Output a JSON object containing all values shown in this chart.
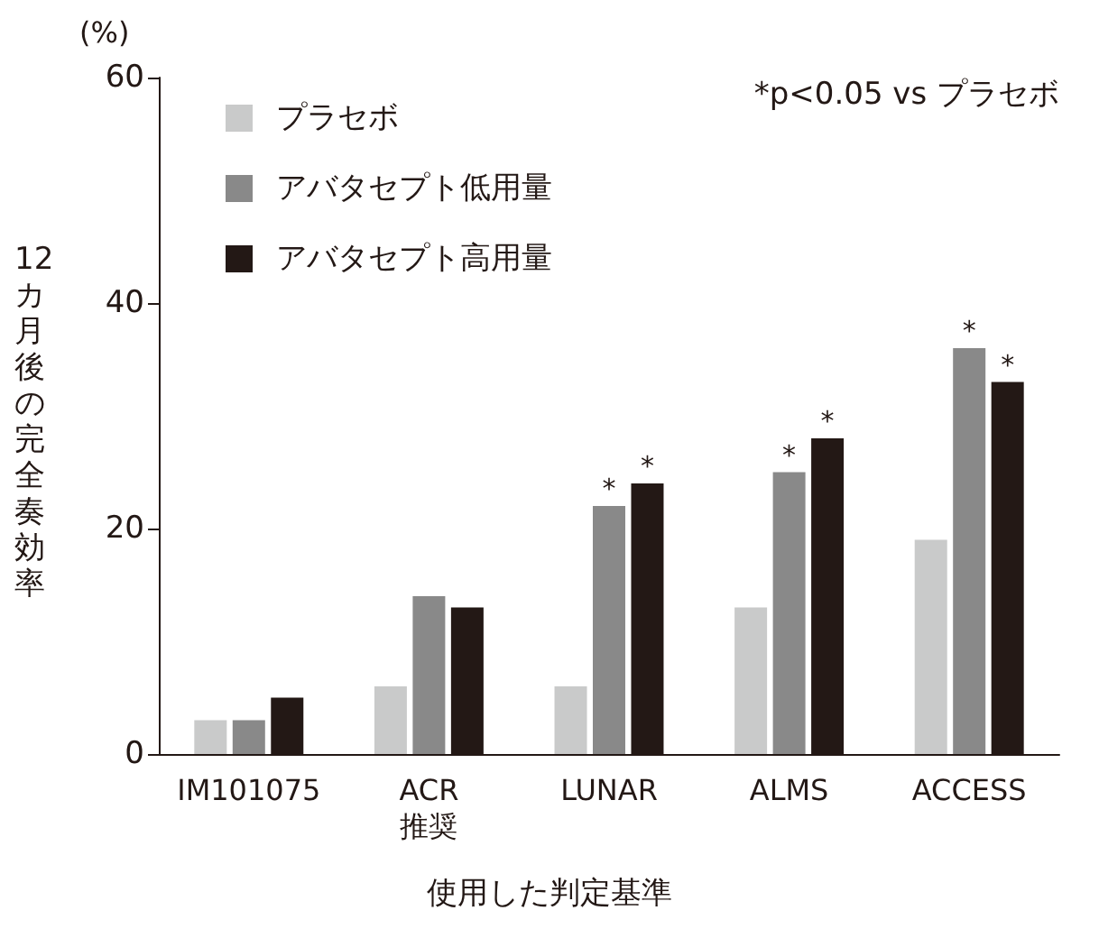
{
  "chart_data": {
    "type": "bar",
    "ylabel": "12カ月後の完全奏効率",
    "xlabel": "使用した判定基準",
    "categories": [
      "IM101075",
      "ACR\n推奨",
      "LUNAR",
      "ALMS",
      "ACCESS"
    ],
    "series": [
      {
        "name": "プラセボ",
        "color": "#c9caca",
        "values": [
          3,
          6,
          6,
          13,
          19
        ]
      },
      {
        "name": "アバタセプト低用量",
        "color": "#898989",
        "values": [
          3,
          14,
          22,
          25,
          36
        ],
        "value_labels": [
          null,
          null,
          "*",
          "*",
          "*"
        ]
      },
      {
        "name": "アバタセプト高用量",
        "color": "#231815",
        "values": [
          5,
          13,
          24,
          28,
          33
        ],
        "value_labels": [
          null,
          null,
          "*",
          "*",
          "*"
        ]
      }
    ],
    "ylim": [
      0,
      60
    ],
    "yticks": [
      0,
      20,
      40,
      60
    ],
    "grid": false,
    "legend": "top left",
    "annotations": [
      "(%)",
      "*p<0.05 vs プラセボ"
    ]
  }
}
